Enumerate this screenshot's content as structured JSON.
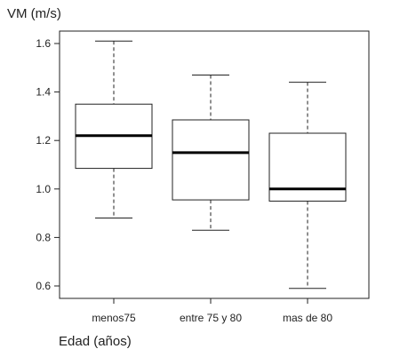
{
  "chart_data": {
    "type": "boxplot",
    "ylabel": "VM (m/s)",
    "xlabel": "Edad (años)",
    "ylim": [
      0.56,
      1.7
    ],
    "yticks": [
      "0.6",
      "0.8",
      "1.0",
      "1.2",
      "1.4",
      "1.6"
    ],
    "ytick_values": [
      0.6,
      0.8,
      1.0,
      1.2,
      1.4,
      1.6
    ],
    "grid": false,
    "categories": [
      "menos75",
      "entre 75 y 80",
      "mas de 80"
    ],
    "boxes": [
      {
        "category": "menos75",
        "min": 0.88,
        "q1": 1.085,
        "median": 1.22,
        "q3": 1.35,
        "max": 1.61
      },
      {
        "category": "entre 75 y 80",
        "min": 0.83,
        "q1": 0.955,
        "median": 1.15,
        "q3": 1.285,
        "max": 1.47
      },
      {
        "category": "mas de 80",
        "min": 0.59,
        "q1": 0.95,
        "median": 1.0,
        "q3": 1.23,
        "max": 1.44
      }
    ]
  }
}
